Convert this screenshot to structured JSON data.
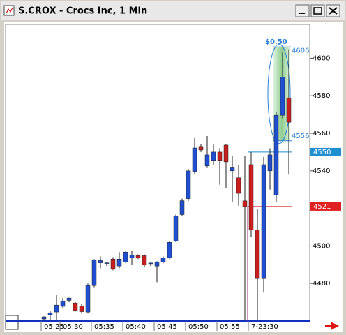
{
  "window": {
    "title": "S.CROX - Crocs Inc, 1 Min"
  },
  "chart_data": {
    "type": "candlestick",
    "categories": [
      "05:25",
      null,
      null,
      "05:30",
      null,
      null,
      null,
      null,
      "05:35",
      null,
      null,
      null,
      null,
      "05:40",
      null,
      null,
      null,
      null,
      "05:45",
      null,
      null,
      null,
      null,
      "05:50",
      null,
      null,
      null,
      null,
      "05:55",
      null,
      null,
      null,
      null,
      "7-23:30",
      null,
      null,
      null,
      null,
      null,
      null
    ],
    "open": [
      4461.1,
      4463.3,
      4464.8,
      4467.8,
      4471,
      4469.6,
      4468,
      4464.8,
      4478.9,
      4491,
      4490.7,
      4493,
      4489.3,
      4491.5,
      4493.7,
      4494.8,
      4494.8,
      4490.5,
      4489.3,
      4491.5,
      4493.7,
      4502.6,
      4516.7,
      4525.2,
      4539.6,
      4553,
      4542.6,
      4545.6,
      4550,
      4553.7,
      4540,
      4536.3,
      4524,
      4543.3,
      4508.5,
      4482.6,
      4540,
      4527,
      4569.6,
      4578.9
    ],
    "high": [
      4462.5,
      4465.2,
      4474.1,
      4472.2,
      4472.5,
      4470,
      4469,
      4480,
      4493,
      4494.4,
      4491.5,
      4494,
      4496.7,
      4497.4,
      4497.4,
      4495.5,
      4495.5,
      4491.5,
      4491.9,
      4494.4,
      4502.6,
      4516.7,
      4525.2,
      4541,
      4557.4,
      4554.4,
      4558.5,
      4554,
      4552,
      4554.4,
      4548,
      4543,
      4548,
      4550,
      4519.6,
      4547.4,
      4552,
      4571.5,
      4603,
      4604.8
    ],
    "low": [
      4460.4,
      4460.4,
      4460.4,
      4467,
      4470,
      4465,
      4464,
      4464,
      4478,
      4488.1,
      4489.3,
      4487,
      4488.1,
      4491,
      4490,
      4493,
      4489,
      4489.3,
      4480.7,
      4490.7,
      4493,
      4502,
      4516,
      4524,
      4538.1,
      4550,
      4541.9,
      4543,
      4532.6,
      4530.7,
      4523.3,
      4521.5,
      4460.4,
      4505,
      4460.4,
      4475.2,
      4530,
      4523.3,
      4568,
      4538
    ],
    "close": [
      4462.2,
      4464.4,
      4468.5,
      4470.7,
      4472.2,
      4465.6,
      4465,
      4478.9,
      4492.6,
      4492.2,
      4491,
      4487.8,
      4493,
      4496.7,
      4495.2,
      4493.7,
      4490,
      4490.9,
      4491.5,
      4493.7,
      4501.9,
      4515.9,
      4524.1,
      4540,
      4552.2,
      4551.1,
      4548.5,
      4550,
      4545.6,
      4544.8,
      4542,
      4528,
      4521,
      4508.5,
      4482.6,
      4543.3,
      4548.5,
      4569.6,
      4590,
      4565.9
    ],
    "up_color": "#1f4fd0",
    "down_color": "#c81e1e",
    "ylim": [
      4460,
      4618
    ],
    "yticks": [
      4480,
      4500,
      4540,
      4560,
      4580,
      4600
    ],
    "price_lines": [
      {
        "value": 4550,
        "color": "#1f8fd0"
      },
      {
        "value": 4521,
        "color": "#e02020"
      }
    ],
    "measure": {
      "label": "$0.50",
      "high": 4606,
      "low": 4556,
      "color": "#2a7fd4"
    }
  }
}
